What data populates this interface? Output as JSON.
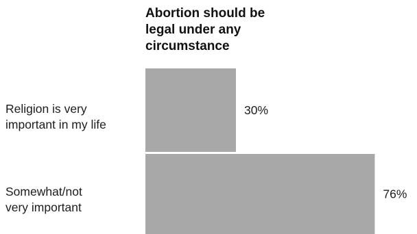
{
  "chart_data": {
    "type": "bar",
    "orientation": "horizontal",
    "title_lines": [
      "Abortion should be",
      "legal under any",
      "circumstance"
    ],
    "categories": [
      [
        "Religion is very",
        "important in my life"
      ],
      [
        "Somewhat/not",
        "very important"
      ]
    ],
    "values": [
      30,
      76
    ],
    "value_labels": [
      "30%",
      "76%"
    ],
    "value_unit": "%",
    "xlim": [
      0,
      100
    ],
    "grid": false,
    "legend": "none",
    "colors": {
      "bar": "#a8a8a8",
      "text": "#1c1c1c"
    }
  }
}
